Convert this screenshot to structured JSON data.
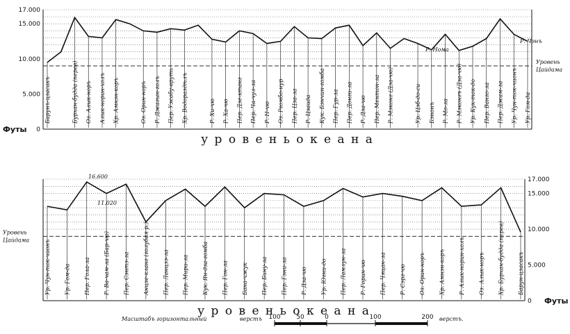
{
  "chart_data": [
    {
      "type": "line",
      "ylim": [
        0,
        17000
      ],
      "y_ticks": [
        "17.000",
        "15.000",
        "10.000",
        "5.000",
        "0"
      ],
      "y_unit": "Футы",
      "sea_label": "у р о в е н ь   о к е а н а",
      "reference_label": "Уровень Цайдама",
      "reference_value": 9000,
      "points": [
        [
          "Барунъ-цзасакъ",
          9500
        ],
        [
          "",
          11000
        ],
        [
          "Бурхан-будда (перев)",
          15900
        ],
        [
          "Оз. Алык-норъ",
          13200
        ],
        [
          "Алык-норин-холъ",
          13000
        ],
        [
          "Хр. Амнэн-коръ",
          15600
        ],
        [
          "",
          15000
        ],
        [
          "Оз. Орин-норъ",
          14000
        ],
        [
          "Р. Джагын-голъ",
          13800
        ],
        [
          "Пер. Ужабу-вруть",
          14300
        ],
        [
          "Хр. Водораздѣлъ",
          14100
        ],
        [
          "",
          14800
        ],
        [
          "Р. Хи-чю",
          12800
        ],
        [
          "Р. Ха-чю",
          12400
        ],
        [
          "Пер. Дзе-ктанг",
          14000
        ],
        [
          "Пер. Ча-чул-ла",
          13600
        ],
        [
          "Р. Н-чю",
          12200
        ],
        [
          "Оз. Ргомбо-нур",
          12500
        ],
        [
          "Пер. Цза-ла",
          14600
        ],
        [
          "Р. Цзаида",
          13000
        ],
        [
          "Кук. Бэнчин-гомба",
          12900
        ],
        [
          "Пер. Гур-ла",
          14400
        ],
        [
          "Пер. Донги-ла",
          14800
        ],
        [
          "Р. Дза-чю",
          11900
        ],
        [
          "Пер. Ментон-ла",
          13700
        ],
        [
          "Р. Мэконг (Дза-чю)",
          11500
        ],
        [
          "",
          12900
        ],
        [
          "Ур. Цэб-до-си",
          12200
        ],
        [
          "Бэнонъ",
          11300
        ],
        [
          "Р. Мо-ла",
          13500
        ],
        [
          "Р. Мэконгъ (Дза-чю)",
          11200
        ],
        [
          "Ур. Кук-ток-до",
          11800
        ],
        [
          "Пер. Ванго-ла",
          12900
        ],
        [
          "Пер. Джам-ла",
          15700
        ],
        [
          "Ур. Чун-ток-чионъ",
          13500
        ],
        [
          "Ур. Гом-да",
          12500
        ]
      ],
      "annotations": [
        "Р. Нома",
        "Р. Чэнъ"
      ]
    },
    {
      "type": "line",
      "ylim": [
        0,
        17000
      ],
      "y_ticks": [
        "17.000",
        "15.000",
        "10.000",
        "5.000",
        "0"
      ],
      "y_unit": "Футы",
      "sea_label": "у р о в е н ь   о к е а н а",
      "reference_label": "Уровень Цайдама",
      "reference_value": 9000,
      "points": [
        [
          "Ур. Чун-ток-чионъ",
          13200
        ],
        [
          "Ур. Гом-да",
          12700
        ],
        [
          "Пер. Гола-ла",
          16600
        ],
        [
          "Р. Ва-чам-ла (Бар-чю)",
          15000
        ],
        [
          "Пер. Сэнтэ-ла",
          16300
        ],
        [
          "Анцзе-кланг (голубая р.)",
          11020
        ],
        [
          "Пер. Ланцзэ-ла",
          14000
        ],
        [
          "Пер. Мири-ла",
          15600
        ],
        [
          "Кук. Ян-дза-гомба",
          13200
        ],
        [
          "Пер. Гон-ла",
          15900
        ],
        [
          "Бана-чжук",
          13000
        ],
        [
          "Пер. Бину-ла",
          15000
        ],
        [
          "Пер. Гэни-ла",
          14800
        ],
        [
          "Р. Дза-чю",
          13200
        ],
        [
          "Ур. Югни-до",
          14000
        ],
        [
          "Пер. Ламлун-ла",
          15700
        ],
        [
          "Р. Горин-чю",
          14500
        ],
        [
          "Пер. Чяцан-ла",
          15000
        ],
        [
          "Р. Сэрг-чю",
          14600
        ],
        [
          "Оз. Орин-норъ",
          14000
        ],
        [
          "Хр. Амнэн-коръ",
          15800
        ],
        [
          "Р. Алык-норин-холъ",
          13200
        ],
        [
          "Оз. Алык-норъ",
          13400
        ],
        [
          "Хр. Бурхан-будда (перев)",
          15800
        ],
        [
          "Барун-цзасакъ",
          9600
        ]
      ],
      "annotations": [
        "16.600",
        "11.020"
      ]
    }
  ],
  "scale_bar": {
    "caption": "Масштабъ горизонтальный",
    "unit_left": "верстъ",
    "unit_right": "верстъ.",
    "ticks": [
      "100",
      "50",
      "0",
      "100",
      "200"
    ]
  }
}
